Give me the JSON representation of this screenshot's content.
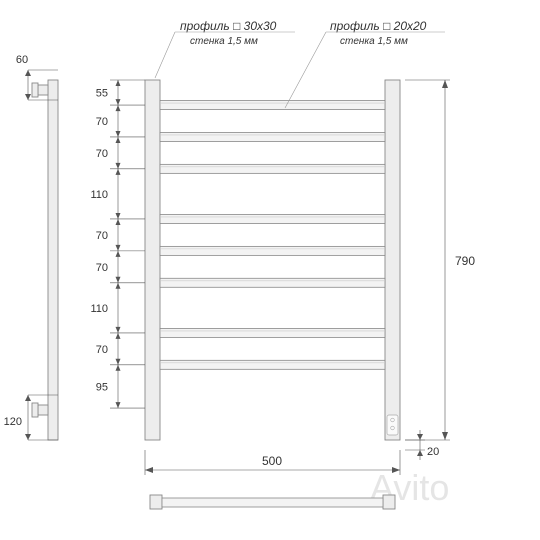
{
  "watermark": "Avito",
  "labels": {
    "profile30": {
      "title": "профиль □ 30x30",
      "sub": "стенка 1,5 мм"
    },
    "profile20": {
      "title": "профиль □ 20x20",
      "sub": "стенка 1,5 мм"
    }
  },
  "side_top_dim": "60",
  "side_bottom_dim": "120",
  "height_total": "790",
  "foot_dim": "20",
  "width_dim": "500",
  "segment_labels": [
    "55",
    "70",
    "70",
    "110",
    "70",
    "70",
    "110",
    "70",
    "95"
  ],
  "segment_heights": [
    55,
    70,
    70,
    110,
    70,
    70,
    110,
    70,
    95
  ],
  "colors": {
    "line": "#555555",
    "light": "#999999",
    "fill": "#ededed",
    "rung": "#f3f3f3"
  },
  "fontsizes": {
    "title": 12,
    "sub": 10,
    "dim": 11
  }
}
